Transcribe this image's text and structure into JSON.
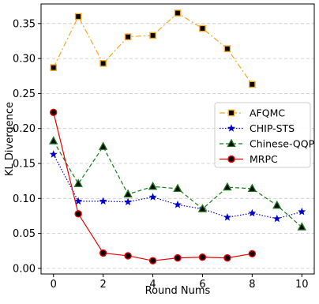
{
  "chart_data": {
    "type": "line",
    "title": "",
    "xlabel": "Round Nums",
    "ylabel": "KL Divergence",
    "xlim": [
      -0.5,
      10.5
    ],
    "ylim": [
      -0.008,
      0.378
    ],
    "xticks": [
      0,
      2,
      4,
      6,
      8,
      10
    ],
    "xtick_labels": [
      "0",
      "2",
      "4",
      "6",
      "8",
      "10"
    ],
    "yticks": [
      0.0,
      0.05,
      0.1,
      0.15,
      0.2,
      0.25,
      0.3,
      0.35
    ],
    "ytick_labels": [
      "0.00",
      "0.05",
      "0.10",
      "0.15",
      "0.20",
      "0.25",
      "0.30",
      "0.35"
    ],
    "grid": "horizontal dashed",
    "legend_position": "center-right",
    "series": [
      {
        "name": "AFQMC",
        "x": [
          0,
          1,
          2,
          3,
          4,
          5,
          6,
          7,
          8
        ],
        "values": [
          0.287,
          0.36,
          0.293,
          0.331,
          0.333,
          0.365,
          0.343,
          0.314,
          0.263
        ],
        "color": "#f5a623",
        "marker_fill": "#000000",
        "marker_stroke": "#f5a623",
        "marker": "square",
        "line_style": "dashdot"
      },
      {
        "name": "CHIP-STS",
        "x": [
          0,
          1,
          2,
          3,
          4,
          5,
          6,
          7,
          8,
          9,
          10
        ],
        "values": [
          0.163,
          0.096,
          0.096,
          0.095,
          0.102,
          0.091,
          0.085,
          0.073,
          0.079,
          0.071,
          0.081
        ],
        "color": "#0000cc",
        "marker_fill": "#0000cc",
        "marker_stroke": "#0000cc",
        "marker": "star",
        "line_style": "dotted"
      },
      {
        "name": "Chinese-QQP",
        "x": [
          0,
          1,
          2,
          3,
          4,
          5,
          6,
          7,
          8,
          9,
          10
        ],
        "values": [
          0.182,
          0.121,
          0.174,
          0.106,
          0.117,
          0.114,
          0.085,
          0.116,
          0.114,
          0.09,
          0.059
        ],
        "color": "#1a7a1a",
        "marker_fill": "#000000",
        "marker_stroke": "#1a7a1a",
        "marker": "triangle",
        "line_style": "dashed"
      },
      {
        "name": "MRPC",
        "x": [
          0,
          1,
          2,
          3,
          4,
          5,
          6,
          7,
          8
        ],
        "values": [
          0.223,
          0.078,
          0.022,
          0.018,
          0.011,
          0.015,
          0.016,
          0.015,
          0.021
        ],
        "color": "#ee0000",
        "marker_fill": "#000000",
        "marker_stroke": "#ee0000",
        "marker": "circle",
        "line_style": "solid"
      }
    ]
  }
}
